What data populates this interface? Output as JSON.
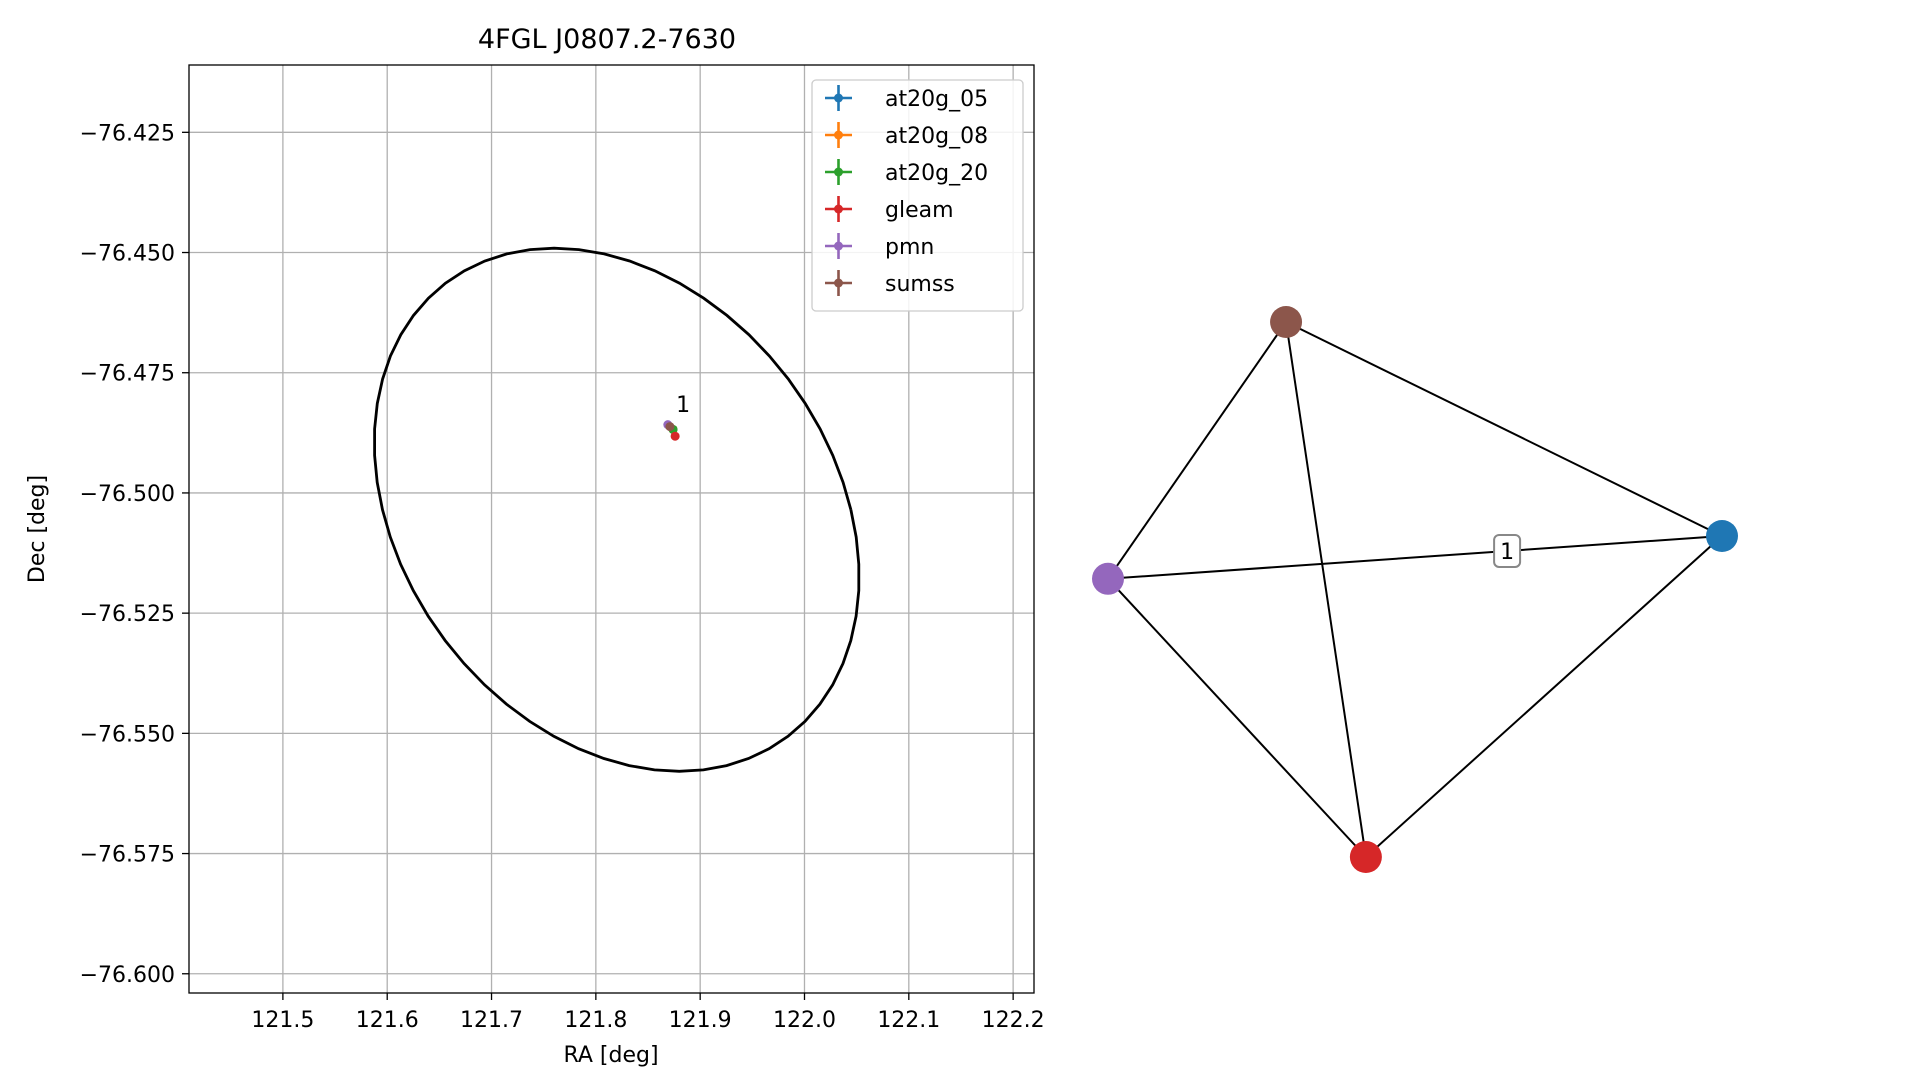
{
  "figure": {
    "panels": [
      "sky-plot",
      "network-graph"
    ]
  },
  "chart_data": [
    {
      "type": "scatter",
      "title": "4FGL J0807.2-7630",
      "xlabel": "RA [deg]",
      "ylabel": "Dec [deg]",
      "xlim": [
        121.41,
        122.22
      ],
      "ylim": [
        -76.604,
        -76.411
      ],
      "xticks": [
        121.5,
        121.6,
        121.7,
        121.8,
        121.9,
        122.0,
        122.1,
        122.2
      ],
      "xtick_labels": [
        "121.5",
        "121.6",
        "121.7",
        "121.8",
        "121.9",
        "122.0",
        "122.1",
        "122.2"
      ],
      "yticks": [
        -76.425,
        -76.45,
        -76.475,
        -76.5,
        -76.525,
        -76.55,
        -76.575,
        -76.6
      ],
      "ytick_labels": [
        "−76.425",
        "−76.450",
        "−76.475",
        "−76.500",
        "−76.525",
        "−76.550",
        "−76.575",
        "−76.600"
      ],
      "grid": true,
      "legend_position": "top-right",
      "series": [
        {
          "name": "at20g_05",
          "color": "#1f77b4",
          "x": [
            121.874
          ],
          "y": [
            -76.4868
          ]
        },
        {
          "name": "at20g_08",
          "color": "#ff7f0e",
          "x": [
            121.874
          ],
          "y": [
            -76.4868
          ]
        },
        {
          "name": "at20g_20",
          "color": "#2ca02c",
          "x": [
            121.874
          ],
          "y": [
            -76.4868
          ]
        },
        {
          "name": "gleam",
          "color": "#d62728",
          "x": [
            121.876
          ],
          "y": [
            -76.4882
          ]
        },
        {
          "name": "pmn",
          "color": "#9467bd",
          "x": [
            121.869
          ],
          "y": [
            -76.4858
          ]
        },
        {
          "name": "sumss",
          "color": "#8c564b",
          "x": [
            121.871
          ],
          "y": [
            -76.4862
          ]
        }
      ],
      "annotations": [
        {
          "text": "1",
          "x": 121.877,
          "y": -76.4832
        }
      ],
      "ellipse": {
        "color": "#000000",
        "center": [
          121.82,
          -76.5035
        ],
        "ra_radius": 0.239,
        "dec_radius": 0.0544,
        "tilt_deg": 62
      }
    },
    {
      "type": "network",
      "nodes": [
        {
          "id": "at20g",
          "color": "#1f77b4",
          "x": 1.0,
          "y": 0.6
        },
        {
          "id": "sumss",
          "color": "#8c564b",
          "x": 0.29,
          "y": 1.0
        },
        {
          "id": "pmn",
          "color": "#9467bd",
          "x": 0.0,
          "y": 0.52
        },
        {
          "id": "gleam",
          "color": "#d62728",
          "x": 0.42,
          "y": 0.0
        }
      ],
      "edges": [
        [
          "sumss",
          "at20g"
        ],
        [
          "sumss",
          "pmn"
        ],
        [
          "sumss",
          "gleam"
        ],
        [
          "pmn",
          "at20g"
        ],
        [
          "pmn",
          "gleam"
        ],
        [
          "gleam",
          "at20g"
        ]
      ],
      "edge_labels": [
        {
          "text": "1",
          "edge": [
            "pmn",
            "at20g"
          ],
          "t": 0.65
        }
      ]
    }
  ]
}
